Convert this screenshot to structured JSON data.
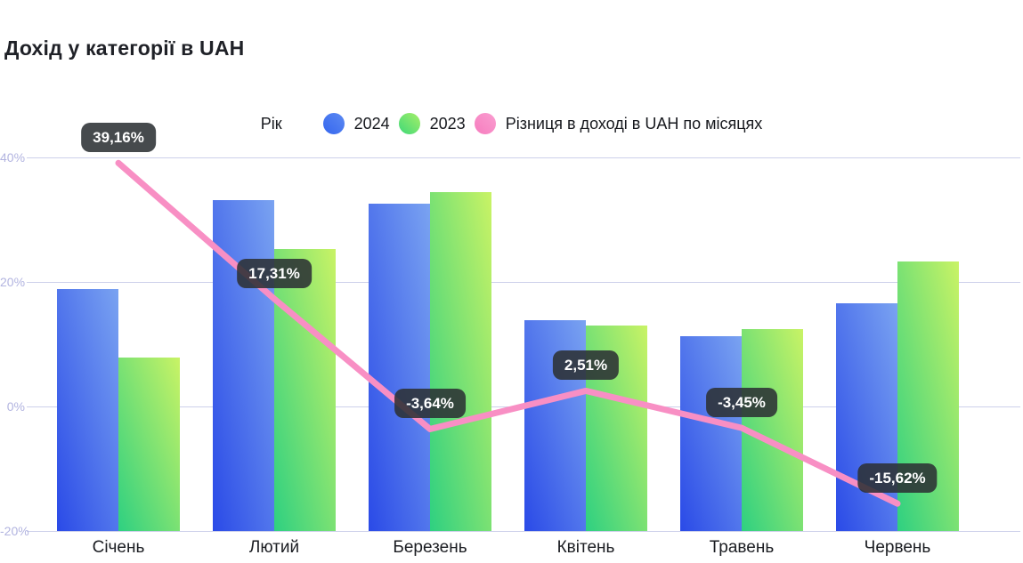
{
  "chart": {
    "title": "Дохід у категорії в UAH"
  },
  "legend": {
    "title": "Рік",
    "items": [
      {
        "label": "2024",
        "color_from": "#3566ee",
        "color_to": "#5c8af2"
      },
      {
        "label": "2023",
        "color_from": "#3ed878",
        "color_to": "#a6ef68"
      },
      {
        "label": "Різниця в доході в UAH по місяцях",
        "color_from": "#f67cbe",
        "color_to": "#fa9ed0"
      }
    ]
  },
  "chart_data": {
    "type": "bar",
    "title": "Дохід у категорії в UAH",
    "categories": [
      "Січень",
      "Лютий",
      "Березень",
      "Квітень",
      "Травень",
      "Червень"
    ],
    "series": [
      {
        "name": "2024",
        "type": "bar",
        "values": [
          18.9,
          33.2,
          32.6,
          13.9,
          11.3,
          16.6
        ]
      },
      {
        "name": "2023",
        "type": "bar",
        "values": [
          7.9,
          25.3,
          34.5,
          13.0,
          12.4,
          23.3
        ]
      },
      {
        "name": "Різниця в доході в UAH по місяцях",
        "type": "line",
        "values": [
          39.16,
          17.31,
          -3.64,
          2.51,
          -3.45,
          -15.62
        ],
        "point_labels": [
          "39,16%",
          "17,31%",
          "-3,64%",
          "2,51%",
          "-3,45%",
          "-15,62%"
        ]
      }
    ],
    "yticks": [
      {
        "value": 40,
        "label": "40%"
      },
      {
        "value": 20,
        "label": "20%"
      },
      {
        "value": 0,
        "label": "0%"
      },
      {
        "value": -20,
        "label": "-20%"
      }
    ],
    "ylim": [
      -20,
      45
    ],
    "bar_baseline": -20,
    "grid": "horizontal",
    "legend_position": "top-center",
    "xlabel": "",
    "ylabel": ""
  },
  "colors": {
    "bar_2024_from": "#2a4ae7",
    "bar_2024_to": "#7aa3f1",
    "bar_2023_from": "#2ed081",
    "bar_2023_to": "#c9f365",
    "diff_line": "#f88fc4",
    "point_label_bg": "rgba(44,49,52,0.88)",
    "gridline": "#cdd0ea",
    "tick_text": "#b2b4e0",
    "title_text": "#1f2127"
  }
}
